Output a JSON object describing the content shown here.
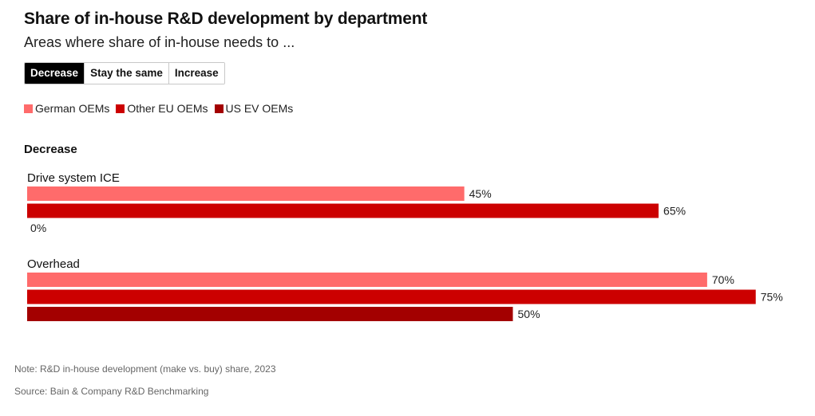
{
  "header": {
    "title": "Share of in-house R&D development by department",
    "subtitle": "Areas where share of in-house needs to ..."
  },
  "tabs": [
    {
      "label": "Decrease",
      "active": true
    },
    {
      "label": "Stay the same",
      "active": false
    },
    {
      "label": "Increase",
      "active": false
    }
  ],
  "section_title": "Decrease",
  "footer": {
    "note": "Note: R&D in-house development (make vs. buy) share, 2023",
    "source": "Source: Bain & Company R&D Benchmarking"
  },
  "chart_data": {
    "type": "bar",
    "orientation": "horizontal",
    "categories": [
      "Drive system ICE",
      "Overhead"
    ],
    "series": [
      {
        "name": "German OEMs",
        "color": "#ff6b6b",
        "values": [
          45,
          70
        ]
      },
      {
        "name": "Other EU OEMs",
        "color": "#cc0000",
        "values": [
          65,
          75
        ]
      },
      {
        "name": "US EV OEMs",
        "color": "#a30000",
        "values": [
          0,
          50
        ]
      }
    ],
    "value_labels": [
      [
        "45%",
        "70%"
      ],
      [
        "65%",
        "75%"
      ],
      [
        "0%",
        "50%"
      ]
    ],
    "xlim": [
      0,
      100
    ],
    "grid": false,
    "legend_position": "top-left"
  }
}
